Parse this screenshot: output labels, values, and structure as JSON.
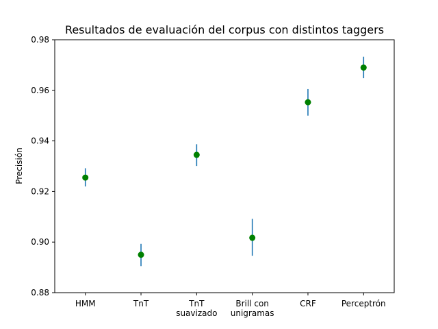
{
  "chart_data": {
    "type": "scatter",
    "title": "Resultados de evaluación del corpus con distintos taggers",
    "xlabel": "",
    "ylabel": "Precisión",
    "ylim": [
      0.88,
      0.98
    ],
    "yticks": [
      "0.88",
      "0.90",
      "0.92",
      "0.94",
      "0.96",
      "0.98"
    ],
    "ytick_values": [
      0.88,
      0.9,
      0.92,
      0.94,
      0.96,
      0.98
    ],
    "grid": false,
    "categories": [
      [
        "HMM"
      ],
      [
        "TnT"
      ],
      [
        "TnT",
        "suavizado"
      ],
      [
        "Brill con",
        "unigramas"
      ],
      [
        "CRF"
      ],
      [
        "Perceptrón"
      ]
    ],
    "points": [
      {
        "value": 0.9255,
        "low": 0.922,
        "high": 0.9292
      },
      {
        "value": 0.895,
        "low": 0.8905,
        "high": 0.8993
      },
      {
        "value": 0.9345,
        "low": 0.9301,
        "high": 0.9387
      },
      {
        "value": 0.9017,
        "low": 0.8946,
        "high": 0.9092
      },
      {
        "value": 0.9553,
        "low": 0.95,
        "high": 0.9605
      },
      {
        "value": 0.969,
        "low": 0.9648,
        "high": 0.9733
      }
    ],
    "colors": {
      "marker": "#008000",
      "errorbar": "#1f77b4",
      "axes": "#000000"
    }
  }
}
